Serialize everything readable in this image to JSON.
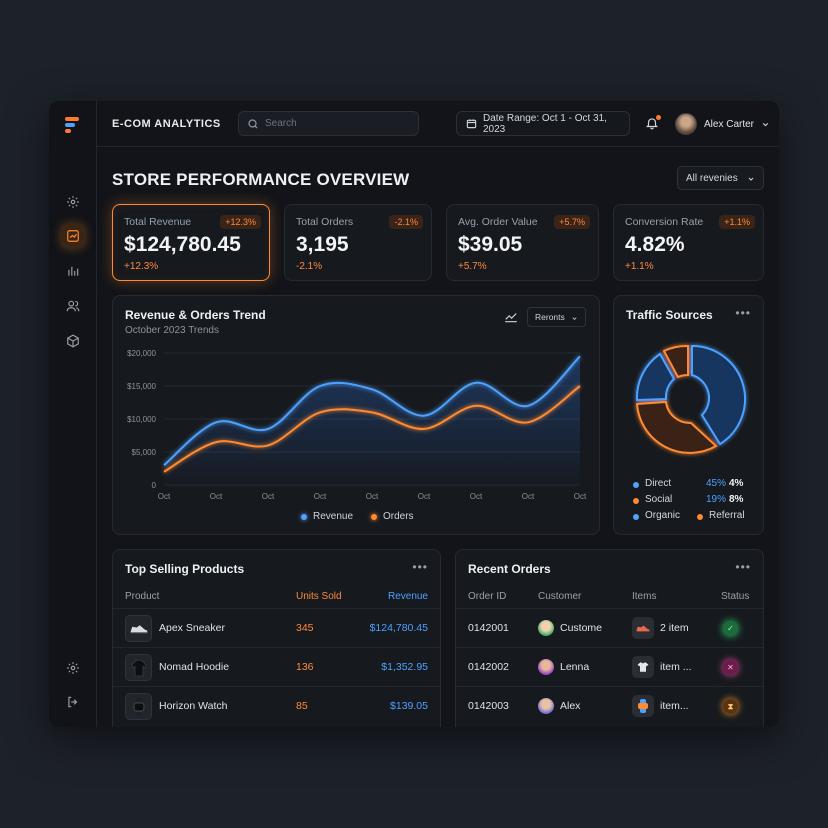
{
  "app": {
    "brand": "E-COM ANALYTICS",
    "search_placeholder": "Search",
    "date_range": "Date Range: Oct 1 - Oct 31, 2023",
    "user_name": "Alex Carter",
    "accent": "#ff8a30",
    "blue": "#4ea1ff"
  },
  "sidebar": {
    "icons": [
      "settings-icon",
      "analytics-icon",
      "bar-chart-icon",
      "users-icon",
      "box-icon"
    ],
    "bottom_icons": [
      "settings-icon",
      "logout-icon"
    ]
  },
  "page": {
    "title": "STORE PERFORMANCE OVERVIEW",
    "filter": "All revenies"
  },
  "kpis": [
    {
      "label": "Total Revenue",
      "value": "$124,780.45",
      "delta": "+12.3%",
      "badge": "+12.3%"
    },
    {
      "label": "Total Orders",
      "value": "3,195",
      "delta": "-2.1%",
      "badge": "-2.1%"
    },
    {
      "label": "Avg. Order Value",
      "value": "$39.05",
      "delta": "+5.7%",
      "badge": "+5.7%"
    },
    {
      "label": "Conversion Rate",
      "value": "4.82%",
      "delta": "+1.1%",
      "badge": "+1.1%"
    }
  ],
  "trend": {
    "title": "Revenue & Orders Trend",
    "subtitle": "October 2023 Trends",
    "button": "Reronts",
    "legend_revenue": "Revenue",
    "legend_orders": "Orders"
  },
  "chart_data": {
    "type": "area",
    "x": [
      "Oct",
      "Oct",
      "Oct",
      "Oct",
      "Oct",
      "Oct",
      "Oct",
      "Oct",
      "Oct"
    ],
    "yticks": [
      "$20,000",
      "$15,000",
      "$10,000",
      "$5,000",
      "0"
    ],
    "ylim": [
      0,
      20000
    ],
    "series": [
      {
        "name": "Revenue",
        "values": [
          3000,
          9500,
          8500,
          15000,
          14500,
          10500,
          15500,
          12000,
          19500
        ],
        "color": "#4ea1ff"
      },
      {
        "name": "Orders",
        "values": [
          2000,
          6500,
          6000,
          11000,
          11000,
          8500,
          12000,
          9500,
          15000
        ],
        "color": "#ff8a30"
      }
    ]
  },
  "traffic": {
    "title": "Traffic Sources",
    "rows": [
      {
        "name": "Direct",
        "pct": "45%",
        "pct2": "4%",
        "color": "#4ea1ff"
      },
      {
        "name": "Social",
        "pct": "19%",
        "pct2": "8%",
        "color": "#ff8a30"
      },
      {
        "name": "Organic",
        "name2": "Referral",
        "color": "#4ea1ff",
        "color2": "#ff8a30"
      }
    ]
  },
  "top_products": {
    "title": "Top Selling Products",
    "headers": {
      "product": "Product",
      "units": "Units Sold",
      "revenue": "Revenue"
    },
    "rows": [
      {
        "name": "Apex Sneaker",
        "units": "345",
        "revenue": "$124,780.45",
        "icon": "sneaker-icon"
      },
      {
        "name": "Nomad Hoodie",
        "units": "136",
        "revenue": "$1,352.95",
        "icon": "hoodie-icon"
      },
      {
        "name": "Horizon Watch",
        "units": "85",
        "revenue": "$139.05",
        "icon": "watch-icon"
      }
    ]
  },
  "recent_orders": {
    "title": "Recent Orders",
    "headers": {
      "order_id": "Order ID",
      "customer": "Customer",
      "items": "Items",
      "status": "Status"
    },
    "rows": [
      {
        "id": "0142001",
        "customer": "Custome",
        "items": "2 item",
        "status": "completed",
        "status_color": "#2fcf6a"
      },
      {
        "id": "0142002",
        "customer": "Lenna",
        "items": "item ...",
        "status": "cancelled",
        "status_color": "#e94fa8"
      },
      {
        "id": "0142003",
        "customer": "Alex",
        "items": "item...",
        "status": "pending",
        "status_color": "#ff9c2a"
      }
    ]
  }
}
